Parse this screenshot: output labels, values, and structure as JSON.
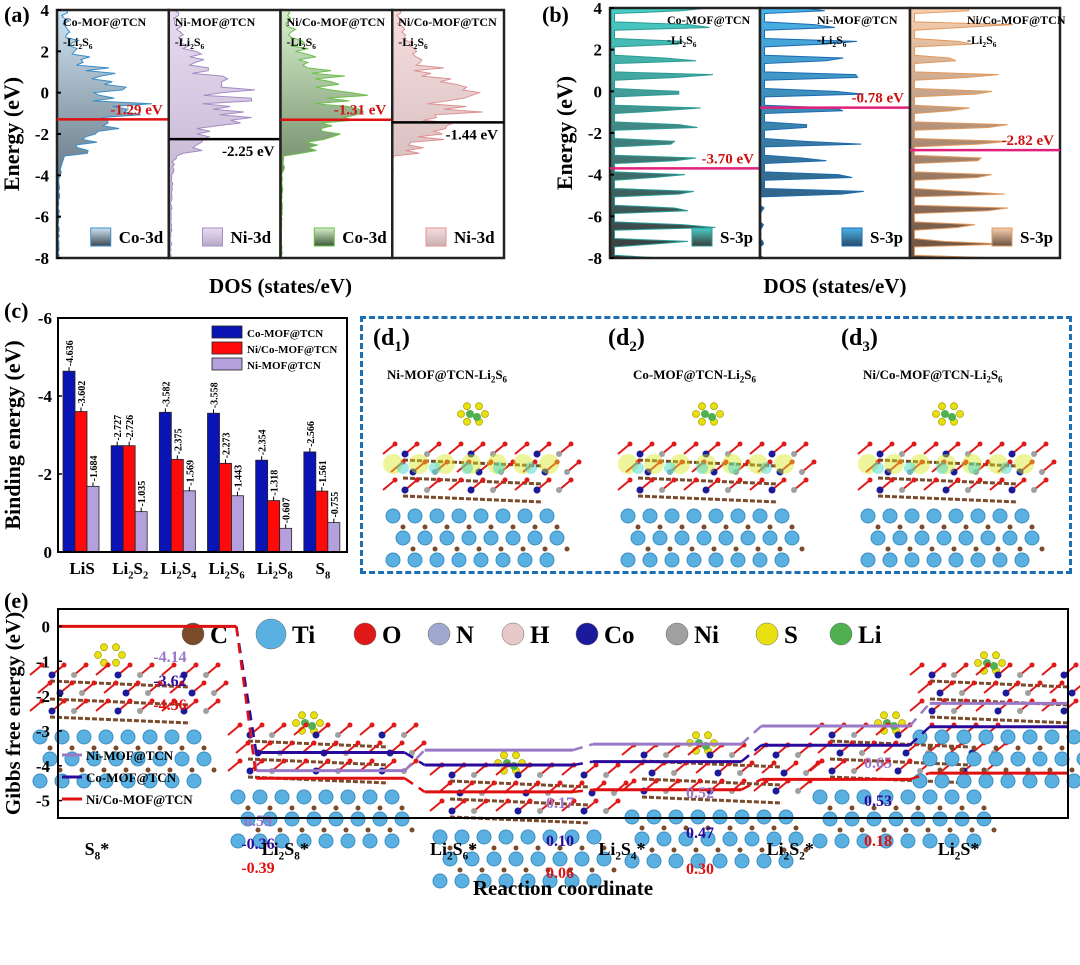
{
  "panels": {
    "a": {
      "label": "(a)"
    },
    "b": {
      "label": "(b)"
    },
    "c": {
      "label": "(c)"
    },
    "d1": {
      "label": "(d1)",
      "base": "(d",
      "sub": "1",
      "close": ")",
      "title_pre": "Ni-MOF@TCN-Li",
      "title_sub1": "2",
      "title_mid": "S",
      "title_sub2": "6"
    },
    "d2": {
      "label": "(d2)",
      "base": "(d",
      "sub": "2",
      "close": ")",
      "title_pre": "Co-MOF@TCN-Li",
      "title_sub1": "2",
      "title_mid": "S",
      "title_sub2": "6"
    },
    "d3": {
      "label": "(d3)",
      "base": "(d",
      "sub": "3",
      "close": ")",
      "title_pre": "Ni/Co-MOF@TCN-Li",
      "title_sub1": "2",
      "title_mid": "S",
      "title_sub2": "6"
    },
    "e": {
      "label": "(e)"
    }
  },
  "colors": {
    "co_bar": "#0a14b4",
    "nico_bar": "#ff0a0a",
    "ni_bar": "#b4a0dc",
    "fermi_red": "#e01010",
    "fermi_pink": "#e0207a",
    "dashed_box": "#1a6fb5",
    "ni_line": "#9a78c8",
    "co_line": "#2a0a9a",
    "nico_line": "#e01010"
  },
  "chart_data": [
    {
      "id": "a",
      "type": "area",
      "title": "",
      "xlabel": "DOS (states/eV)",
      "ylabel": "Energy (eV)",
      "ylim": [
        -8,
        4
      ],
      "yticks": [
        "4",
        "2",
        "0",
        "-2",
        "-4",
        "-6",
        "-8"
      ],
      "subpanels": [
        {
          "name_line1": "Co-MOF@TCN",
          "name_line2_pre": "-Li",
          "sub1": "2",
          "mid": "S",
          "sub2": "6",
          "legend": "Co-3d",
          "center_label": "-1.29 eV",
          "center_value": -1.29,
          "label_color": "red",
          "fill_top": "#cfe4f2",
          "fill_bottom": "#3a4a55",
          "stroke": "#3a8ec8"
        },
        {
          "name_line1": "Ni-MOF@TCN",
          "name_line2_pre": "-Li",
          "sub1": "2",
          "mid": "S",
          "sub2": "6",
          "legend": "Ni-3d",
          "center_label": "-2.25 eV",
          "center_value": -2.25,
          "label_color": "black",
          "fill_top": "#e8dcf0",
          "fill_bottom": "#b8a8c8",
          "stroke": "#a48cc4"
        },
        {
          "name_line1": "Ni/Co-MOF@TCN",
          "name_line2_pre": "-Li",
          "sub1": "2",
          "mid": "S",
          "sub2": "6",
          "legend": "Co-3d",
          "center_label": "-1.31 eV",
          "center_value": -1.31,
          "label_color": "red",
          "fill_top": "#d8f0cc",
          "fill_bottom": "#3e5a3a",
          "stroke": "#6cc04a"
        },
        {
          "name_line1": "Ni/Co-MOF@TCN",
          "name_line2_pre": "-Li",
          "sub1": "2",
          "mid": "S",
          "sub2": "6",
          "legend": "Ni-3d",
          "center_label": "-1.44 eV",
          "center_value": -1.44,
          "label_color": "black",
          "fill_top": "#f6dede",
          "fill_bottom": "#c8b0b0",
          "stroke": "#e09090"
        }
      ]
    },
    {
      "id": "b",
      "type": "area",
      "title": "",
      "xlabel": "DOS (states/eV)",
      "ylabel": "Energy (eV)",
      "ylim": [
        -8,
        4
      ],
      "yticks": [
        "4",
        "2",
        "0",
        "-2",
        "-4",
        "-6",
        "-8"
      ],
      "subpanels": [
        {
          "name_line1": "Co-MOF@TCN",
          "name_line2_pre": "-Li",
          "sub1": "2",
          "mid": "S",
          "sub2": "6",
          "legend": "S-3p",
          "center_label": "-3.70 eV",
          "center_value": -3.7,
          "fill_top": "#48d0c8",
          "fill_bottom": "#3a3a3a",
          "stroke": "#2a9a94"
        },
        {
          "name_line1": "Ni-MOF@TCN",
          "name_line2_pre": "-Li",
          "sub1": "2",
          "mid": "S",
          "sub2": "6",
          "legend": "S-3p",
          "center_label": "-0.78 eV",
          "center_value": -0.78,
          "fill_top": "#4ab4e8",
          "fill_bottom": "#2a4a6a",
          "stroke": "#1a6ab0"
        },
        {
          "name_line1": "Ni/Co-MOF@TCN",
          "name_line2_pre": "-Li",
          "sub1": "2",
          "mid": "S",
          "sub2": "6",
          "legend": "S-3p",
          "center_label": "-2.82 eV",
          "center_value": -2.82,
          "fill_top": "#f8d0b0",
          "fill_bottom": "#6a5040",
          "stroke": "#e09a60"
        }
      ]
    },
    {
      "id": "c",
      "type": "bar",
      "title": "",
      "xlabel": "",
      "ylabel": "Binding energy (eV)",
      "ylim": [
        0,
        -6
      ],
      "yticks": [
        "-6",
        "-4",
        "-2",
        "0"
      ],
      "categories": [
        {
          "pre": "Li",
          "sub1": "",
          "mid": "S",
          "sub2": ""
        },
        {
          "pre": "Li",
          "sub1": "2",
          "mid": "S",
          "sub2": "2"
        },
        {
          "pre": "Li",
          "sub1": "2",
          "mid": "S",
          "sub2": "4"
        },
        {
          "pre": "Li",
          "sub1": "2",
          "mid": "S",
          "sub2": "6"
        },
        {
          "pre": "Li",
          "sub1": "2",
          "mid": "S",
          "sub2": "8"
        },
        {
          "pre": "",
          "sub1": "",
          "mid": "S",
          "sub2": "8"
        }
      ],
      "category_names": [
        "Li2S",
        "Li2S2",
        "Li2S4",
        "Li2S6",
        "Li2S8",
        "S8"
      ],
      "legend_position": "top-right",
      "series": [
        {
          "name": "Co-MOF@TCN",
          "values": [
            -4.636,
            -2.727,
            -3.582,
            -3.558,
            -2.354,
            -2.566
          ],
          "labels": [
            "-4.636",
            "-2.727",
            "-3.582",
            "-3.558",
            "-2.354",
            "-2.566"
          ]
        },
        {
          "name": "Ni/Co-MOF@TCN",
          "values": [
            -3.602,
            -2.726,
            -2.375,
            -2.273,
            -1.318,
            -1.561
          ],
          "labels": [
            "-3.602",
            "-2.726",
            "-2.375",
            "-2.273",
            "-1.318",
            "-1.561"
          ]
        },
        {
          "name": "Ni-MOF@TCN",
          "values": [
            -1.684,
            -1.035,
            -1.569,
            -1.443,
            -0.607,
            -0.755
          ],
          "labels": [
            "-1.684",
            "-1.035",
            "-1.569",
            "-1.443",
            "-0.607",
            "-0.755"
          ]
        }
      ]
    },
    {
      "id": "e",
      "type": "line",
      "title": "",
      "xlabel": "Reaction coordinate",
      "ylabel": "Gibbs free energy (eV)",
      "ylim": [
        -5.5,
        0.5
      ],
      "yticks": [
        "0",
        "-1",
        "-2",
        "-3",
        "-4",
        "-5"
      ],
      "categories": [
        {
          "pre": "",
          "sub1": "",
          "mid": "S",
          "sub2": "8",
          "star": "*"
        },
        {
          "pre": "Li",
          "sub1": "2",
          "mid": "S",
          "sub2": "8",
          "star": "*"
        },
        {
          "pre": "Li",
          "sub1": "2",
          "mid": "S",
          "sub2": "6",
          "star": "*"
        },
        {
          "pre": "Li",
          "sub1": "2",
          "mid": "S",
          "sub2": "4",
          "star": "*"
        },
        {
          "pre": "Li",
          "sub1": "2",
          "mid": "S",
          "sub2": "2",
          "star": "*"
        },
        {
          "pre": "Li",
          "sub1": "2",
          "mid": "S",
          "sub2": "",
          "star": "*"
        }
      ],
      "category_names": [
        "S8*",
        "Li2S8*",
        "Li2S6*",
        "Li2S4*",
        "Li2S2*",
        "Li2S*"
      ],
      "legend_position": "bottom-left",
      "series": [
        {
          "name": "Ni-MOF@TCN",
          "values": [
            0,
            -4.14,
            -3.55,
            -3.38,
            -2.86,
            -2.21
          ],
          "step_labels": [
            "-4.14",
            "0.59",
            "0.17",
            "0.52",
            "0.65"
          ]
        },
        {
          "name": "Co-MOF@TCN",
          "values": [
            0,
            -3.62,
            -3.98,
            -3.88,
            -3.41,
            -2.88
          ],
          "step_labels": [
            "-3.62",
            "-0.36",
            "0.10",
            "0.47",
            "0.53"
          ]
        },
        {
          "name": "Ni/Co-MOF@TCN",
          "values": [
            0,
            -4.36,
            -4.75,
            -4.69,
            -4.39,
            -4.21
          ],
          "step_labels": [
            "-4.36",
            "-0.39",
            "0.06",
            "0.30",
            "0.18"
          ]
        }
      ],
      "atom_legend": [
        {
          "symbol": "C",
          "color": "#7a4a2a"
        },
        {
          "symbol": "Ti",
          "color": "#5ab0e0"
        },
        {
          "symbol": "O",
          "color": "#e01818"
        },
        {
          "symbol": "N",
          "color": "#a0a8d0"
        },
        {
          "symbol": "H",
          "color": "#e8c8c8"
        },
        {
          "symbol": "Co",
          "color": "#1a1a9a"
        },
        {
          "symbol": "Ni",
          "color": "#a0a0a0"
        },
        {
          "symbol": "S",
          "color": "#e8e010"
        },
        {
          "symbol": "Li",
          "color": "#50b050"
        }
      ]
    }
  ]
}
